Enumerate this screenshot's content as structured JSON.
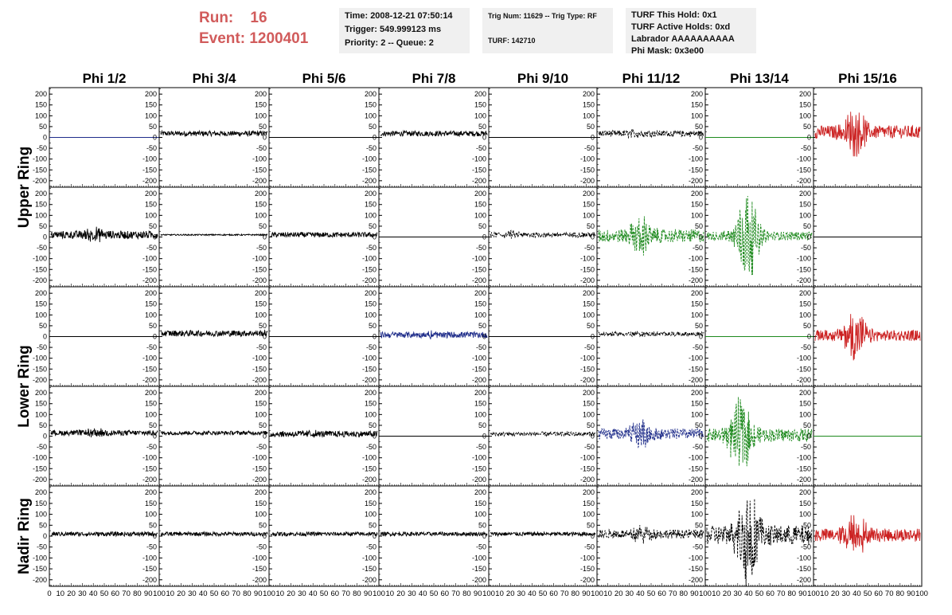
{
  "header": {
    "run_label": "Run:    16",
    "event_label": "Event: 1200401",
    "info_time": "Time: 2008-12-21 07:50:14",
    "info_trigger": "Trigger: 549.999123 ms",
    "info_priority": "Priority: 2 -- Queue: 2",
    "info_trig": "Trig Num: 11629 -- Trig Type: RF",
    "info_turf": "TURF: 142710",
    "info_hold": "TURF This Hold: 0x1",
    "info_active": "TURF Active Holds: 0xd",
    "info_labrador": "Labrador AAAAAAAAAA",
    "info_phimask": "Phi Mask: 0x3e00"
  },
  "colors": {
    "black": "#000000",
    "blue": "#1f2d8a",
    "green": "#1e8a1e",
    "red": "#cc2222",
    "accent_text": "#d15b5b"
  },
  "chart_data": {
    "type": "line",
    "columns": [
      "Phi 1/2",
      "Phi 3/4",
      "Phi 5/6",
      "Phi 7/8",
      "Phi 9/10",
      "Phi 11/12",
      "Phi 13/14",
      "Phi 15/16"
    ],
    "row_groups": [
      "Upper Ring",
      "Lower Ring",
      "Nadir Ring"
    ],
    "ylim": [
      -230,
      230
    ],
    "yticks": [
      200,
      150,
      100,
      50,
      0,
      -50,
      -100,
      -150,
      -200
    ],
    "xlim": [
      0,
      100
    ],
    "xtick_labels": [
      "0",
      "10",
      "20",
      "30",
      "40",
      "50",
      "60",
      "70",
      "80",
      "90",
      "100"
    ],
    "panels": [
      [
        {
          "color": "blue",
          "amp": 0,
          "pulse": 0,
          "pc": 0,
          "dash": false,
          "flat": true
        },
        {
          "color": "black",
          "amp": 12,
          "pulse": 0,
          "pc": 0,
          "dash": false,
          "offset": 18
        },
        {
          "color": "black",
          "amp": 0,
          "pulse": 0,
          "pc": 0,
          "dash": false,
          "flat": true
        },
        {
          "color": "black",
          "amp": 12,
          "pulse": 0,
          "pc": 0,
          "dash": false,
          "offset": 18
        },
        {
          "color": "black",
          "amp": 0,
          "pulse": 0,
          "pc": 0,
          "dash": false,
          "flat": true
        },
        {
          "color": "black",
          "amp": 14,
          "pulse": 10,
          "pc": 35,
          "dash": true,
          "offset": 18
        },
        {
          "color": "green",
          "amp": 0,
          "pulse": 0,
          "pc": 0,
          "dash": false,
          "flat": true
        },
        {
          "color": "red",
          "amp": 30,
          "pulse": 75,
          "pc": 38,
          "dash": false,
          "offset": 25
        }
      ],
      [
        {
          "color": "black",
          "amp": 18,
          "pulse": 20,
          "pc": 40,
          "dash": false,
          "offset": 10
        },
        {
          "color": "black",
          "amp": 3,
          "pulse": 0,
          "pc": 0,
          "dash": false,
          "offset": 10
        },
        {
          "color": "black",
          "amp": 12,
          "pulse": 0,
          "pc": 0,
          "dash": false,
          "offset": 10
        },
        {
          "color": "black",
          "amp": 0,
          "pulse": 0,
          "pc": 0,
          "dash": false,
          "flat": true
        },
        {
          "color": "black",
          "amp": 12,
          "pulse": 10,
          "pc": 20,
          "dash": true,
          "offset": 10
        },
        {
          "color": "green",
          "amp": 30,
          "pulse": 60,
          "pc": 40,
          "dash": true,
          "offset": 5
        },
        {
          "color": "green",
          "amp": 20,
          "pulse": 160,
          "pc": 38,
          "dash": true,
          "offset": 5
        },
        {
          "color": "black",
          "amp": 0,
          "pulse": 0,
          "pc": 0,
          "dash": false,
          "flat": true
        }
      ],
      [
        {
          "color": "black",
          "amp": 0,
          "pulse": 0,
          "pc": 0,
          "dash": false,
          "flat": true
        },
        {
          "color": "black",
          "amp": 14,
          "pulse": 0,
          "pc": 0,
          "dash": false,
          "offset": 15
        },
        {
          "color": "black",
          "amp": 0,
          "pulse": 0,
          "pc": 0,
          "dash": false,
          "flat": true
        },
        {
          "color": "blue",
          "amp": 14,
          "pulse": 10,
          "pc": 50,
          "dash": false,
          "offset": 8
        },
        {
          "color": "black",
          "amp": 0,
          "pulse": 0,
          "pc": 0,
          "dash": false,
          "flat": true
        },
        {
          "color": "black",
          "amp": 10,
          "pulse": 5,
          "pc": 40,
          "dash": true,
          "offset": 12
        },
        {
          "color": "green",
          "amp": 0,
          "pulse": 0,
          "pc": 0,
          "dash": false,
          "flat": true
        },
        {
          "color": "red",
          "amp": 25,
          "pulse": 80,
          "pc": 38,
          "dash": false,
          "offset": 5
        }
      ],
      [
        {
          "color": "black",
          "amp": 12,
          "pulse": 12,
          "pc": 40,
          "dash": false,
          "offset": 15
        },
        {
          "color": "black",
          "amp": 9,
          "pulse": 0,
          "pc": 0,
          "dash": false,
          "offset": 15
        },
        {
          "color": "black",
          "amp": 14,
          "pulse": 8,
          "pc": 35,
          "dash": false,
          "offset": 10
        },
        {
          "color": "black",
          "amp": 0,
          "pulse": 0,
          "pc": 0,
          "dash": false,
          "flat": true
        },
        {
          "color": "black",
          "amp": 10,
          "pulse": 0,
          "pc": 0,
          "dash": true,
          "offset": 10
        },
        {
          "color": "blue",
          "amp": 25,
          "pulse": 45,
          "pc": 40,
          "dash": true,
          "offset": 10
        },
        {
          "color": "green",
          "amp": 30,
          "pulse": 120,
          "pc": 32,
          "dash": true,
          "offset": 5
        },
        {
          "color": "green",
          "amp": 0,
          "pulse": 0,
          "pc": 0,
          "dash": false,
          "flat": true
        }
      ],
      [
        {
          "color": "black",
          "amp": 10,
          "pulse": 0,
          "pc": 0,
          "dash": false,
          "offset": 10
        },
        {
          "color": "black",
          "amp": 9,
          "pulse": 0,
          "pc": 0,
          "dash": false,
          "offset": 10
        },
        {
          "color": "black",
          "amp": 9,
          "pulse": 0,
          "pc": 0,
          "dash": false,
          "offset": 10
        },
        {
          "color": "black",
          "amp": 9,
          "pulse": 0,
          "pc": 0,
          "dash": false,
          "offset": 10
        },
        {
          "color": "black",
          "amp": 9,
          "pulse": 0,
          "pc": 0,
          "dash": false,
          "offset": 10
        },
        {
          "color": "black",
          "amp": 20,
          "pulse": 25,
          "pc": 40,
          "dash": true,
          "offset": 10
        },
        {
          "color": "black",
          "amp": 45,
          "pulse": 170,
          "pc": 40,
          "dash": true,
          "offset": 5
        },
        {
          "color": "red",
          "amp": 30,
          "pulse": 70,
          "pc": 38,
          "dash": false,
          "offset": 5
        }
      ]
    ]
  }
}
